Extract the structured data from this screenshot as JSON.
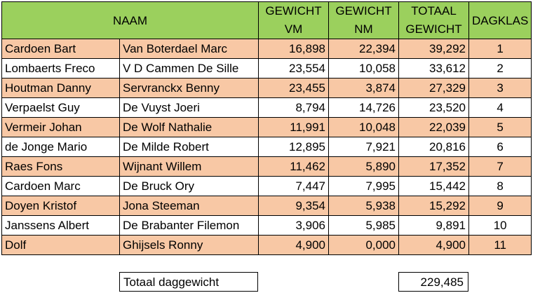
{
  "header": {
    "naam": "NAAM",
    "gewicht_vm": [
      "GEWICHT",
      "VM"
    ],
    "gewicht_nm": [
      "GEWICHT",
      "NM"
    ],
    "totaal_gewicht": [
      "TOTAAL",
      "GEWICHT"
    ],
    "dagklas": "DAGKLAS"
  },
  "rows": [
    {
      "name1": "Cardoen Bart",
      "name2": "Van Boterdael Marc",
      "vm": "16,898",
      "nm": "22,394",
      "total": "39,292",
      "rank": "1"
    },
    {
      "name1": "Lombaerts Freco",
      "name2": "V D Cammen De Sille",
      "vm": "23,554",
      "nm": "10,058",
      "total": "33,612",
      "rank": "2"
    },
    {
      "name1": "Houtman Danny",
      "name2": " Servranckx Benny",
      "vm": "23,455",
      "nm": "3,874",
      "total": "27,329",
      "rank": "3"
    },
    {
      "name1": "Verpaelst Guy",
      "name2": " De Vuyst Joeri",
      "vm": "8,794",
      "nm": "14,726",
      "total": "23,520",
      "rank": "4"
    },
    {
      "name1": "Vermeir Johan",
      "name2": "De Wolf Nathalie",
      "vm": "11,991",
      "nm": "10,048",
      "total": "22,039",
      "rank": "5"
    },
    {
      "name1": "de Jonge Mario",
      "name2": "De Milde Robert",
      "vm": "12,895",
      "nm": "7,921",
      "total": "20,816",
      "rank": "6"
    },
    {
      "name1": "Raes Fons",
      "name2": "Wijnant Willem",
      "vm": "11,462",
      "nm": "5,890",
      "total": "17,352",
      "rank": "7"
    },
    {
      "name1": "Cardoen Marc",
      "name2": "De Bruck Ory",
      "vm": "7,447",
      "nm": "7,995",
      "total": "15,442",
      "rank": "8"
    },
    {
      "name1": "Doyen Kristof",
      "name2": "Jona Steeman",
      "vm": "9,354",
      "nm": "5,938",
      "total": "15,292",
      "rank": "9"
    },
    {
      "name1": "Janssens Albert",
      "name2": "De Brabanter Filemon",
      "vm": "3,906",
      "nm": "5,985",
      "total": "9,891",
      "rank": "10"
    },
    {
      "name1": "Dolf",
      "name2": "Ghijsels Ronny",
      "vm": "4,900",
      "nm": "0,000",
      "total": "4,900",
      "rank": "11"
    }
  ],
  "footer": {
    "total_label": "Totaal daggewicht",
    "total_value": "229,485"
  },
  "colors": {
    "header_green": "#9bd05d",
    "row_orange": "#f8c8a5",
    "row_white": "#ffffff"
  }
}
